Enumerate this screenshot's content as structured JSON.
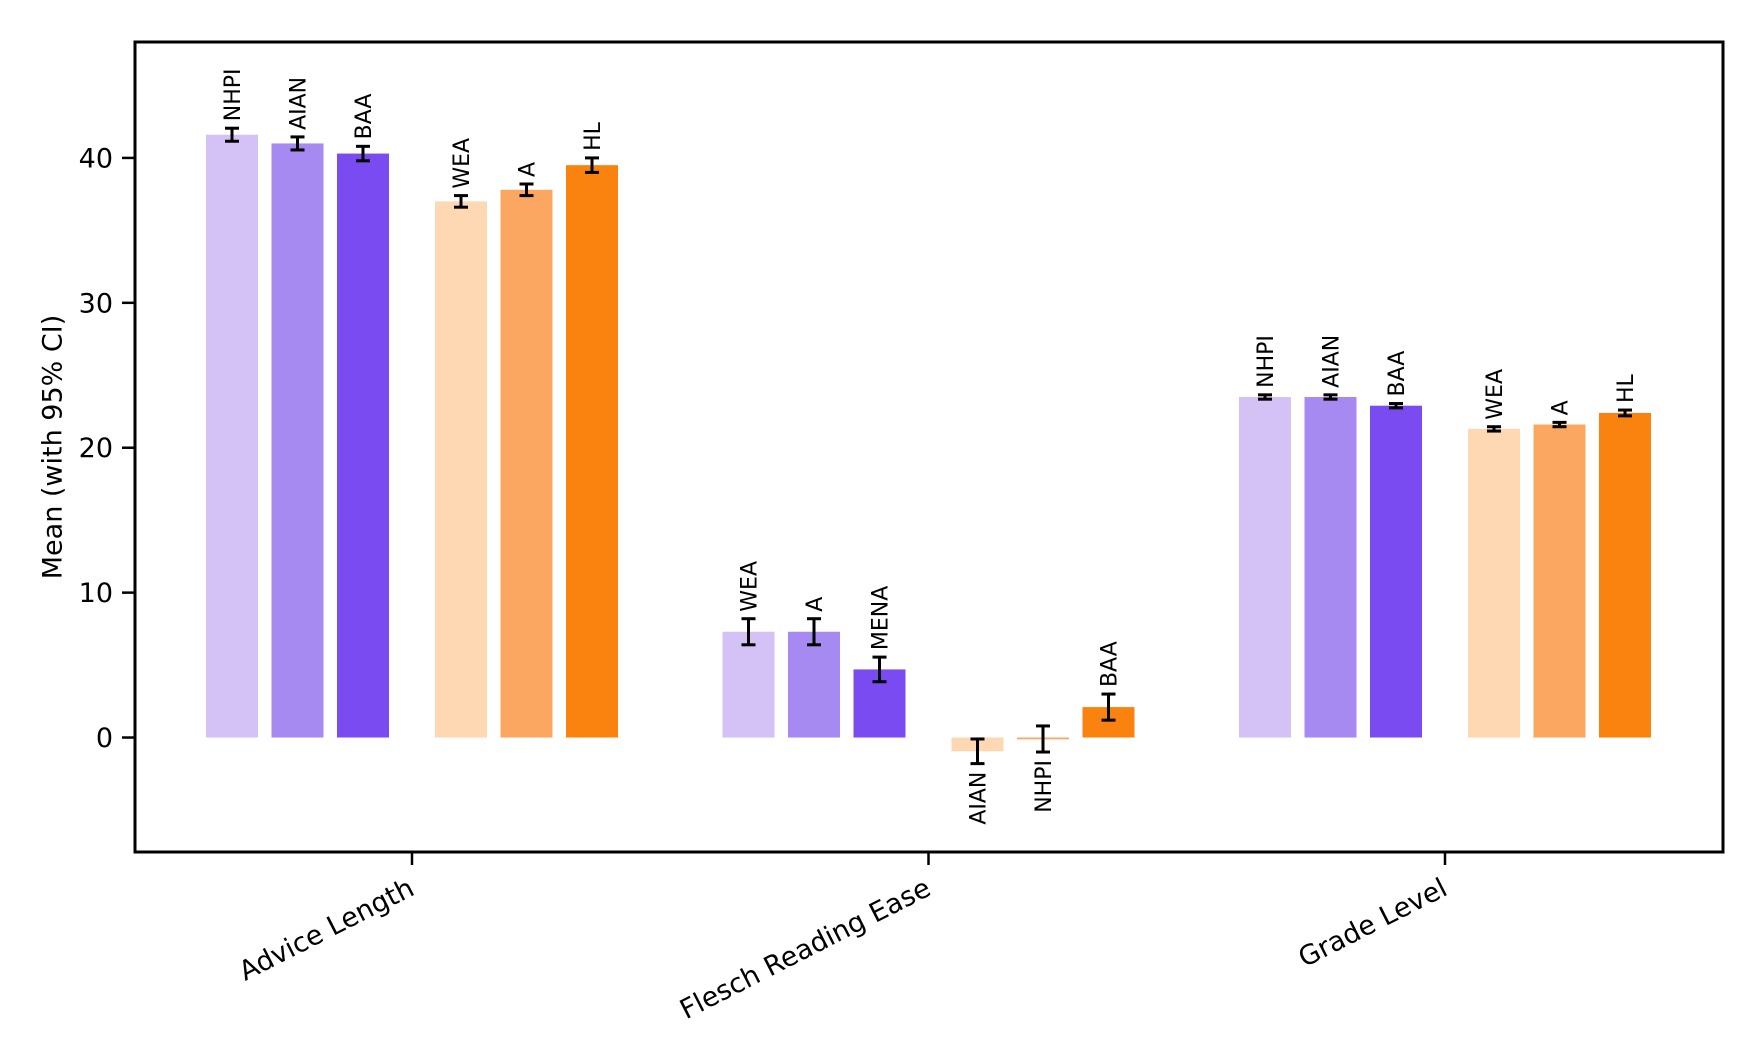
{
  "figure": {
    "background_color": "#ffffff"
  },
  "chart_data": {
    "type": "bar",
    "title": "",
    "xlabel": "",
    "ylabel": "Mean (with 95% CI)",
    "ylim": [
      -7.9,
      48.0
    ],
    "yticks": [
      0,
      10,
      20,
      30,
      40
    ],
    "grid": false,
    "legend": "none",
    "error_bar_meaning": "95% confidence interval",
    "bar_label_rotation_deg": 90,
    "category_label_rotation_deg": 27,
    "palette": {
      "purple_light": "#d4c2f6",
      "purple_mid": "#a689f1",
      "purple_dark": "#7a4bf0",
      "orange_light": "#fdd8b2",
      "orange_mid": "#fca761",
      "orange_dark": "#fa830f"
    },
    "groups": [
      {
        "category": "Advice Length",
        "bars": [
          {
            "label": "NHPI",
            "value": 41.6,
            "ci": 0.45,
            "color": "purple_light"
          },
          {
            "label": "AIAN",
            "value": 41.0,
            "ci": 0.45,
            "color": "purple_mid"
          },
          {
            "label": "BAA",
            "value": 40.3,
            "ci": 0.5,
            "color": "purple_dark"
          },
          {
            "label": "WEA",
            "value": 37.0,
            "ci": 0.4,
            "color": "orange_light"
          },
          {
            "label": "A",
            "value": 37.8,
            "ci": 0.4,
            "color": "orange_mid"
          },
          {
            "label": "HL",
            "value": 39.5,
            "ci": 0.5,
            "color": "orange_dark"
          }
        ]
      },
      {
        "category": "Flesch Reading Ease",
        "bars": [
          {
            "label": "WEA",
            "value": 7.3,
            "ci": 0.9,
            "color": "purple_light"
          },
          {
            "label": "A",
            "value": 7.3,
            "ci": 0.9,
            "color": "purple_mid"
          },
          {
            "label": "MENA",
            "value": 4.7,
            "ci": 0.85,
            "color": "purple_dark"
          },
          {
            "label": "AIAN",
            "value": -0.95,
            "ci": 0.85,
            "color": "orange_light"
          },
          {
            "label": "NHPI",
            "value": -0.1,
            "ci": 0.9,
            "color": "orange_mid"
          },
          {
            "label": "BAA",
            "value": 2.1,
            "ci": 0.9,
            "color": "orange_dark"
          }
        ]
      },
      {
        "category": "Grade Level",
        "bars": [
          {
            "label": "NHPI",
            "value": 23.5,
            "ci": 0.15,
            "color": "purple_light"
          },
          {
            "label": "AIAN",
            "value": 23.5,
            "ci": 0.15,
            "color": "purple_mid"
          },
          {
            "label": "BAA",
            "value": 22.9,
            "ci": 0.15,
            "color": "purple_dark"
          },
          {
            "label": "WEA",
            "value": 21.3,
            "ci": 0.15,
            "color": "orange_light"
          },
          {
            "label": "A",
            "value": 21.6,
            "ci": 0.15,
            "color": "orange_mid"
          },
          {
            "label": "HL",
            "value": 22.4,
            "ci": 0.2,
            "color": "orange_dark"
          }
        ]
      }
    ]
  }
}
